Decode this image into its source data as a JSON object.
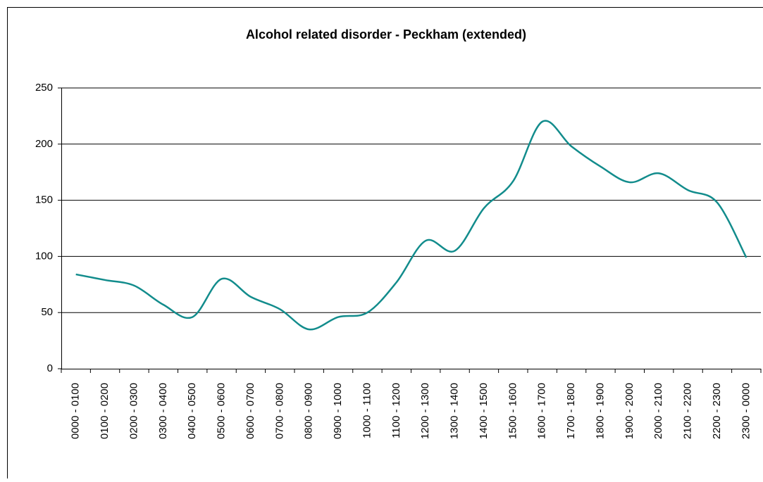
{
  "chart_data": {
    "type": "line",
    "title": "Alcohol related disorder - Peckham (extended)",
    "categories": [
      "0000 - 0100",
      "0100 - 0200",
      "0200 - 0300",
      "0300 - 0400",
      "0400 - 0500",
      "0500 - 0600",
      "0600 - 0700",
      "0700 - 0800",
      "0800 - 0900",
      "0900 - 1000",
      "1000 - 1100",
      "1100 - 1200",
      "1200 - 1300",
      "1300 - 1400",
      "1400 - 1500",
      "1500 - 1600",
      "1600 - 1700",
      "1700 - 1800",
      "1800 - 1900",
      "1900 - 2000",
      "2000 - 2100",
      "2100 - 2200",
      "2200 - 2300",
      "2300 - 0000"
    ],
    "series": [
      {
        "name": "Alcohol related disorder",
        "color": "#128c8c",
        "values": [
          84,
          79,
          74,
          57,
          46,
          80,
          64,
          53,
          35,
          46,
          50,
          77,
          114,
          105,
          143,
          167,
          220,
          198,
          180,
          166,
          174,
          159,
          148,
          99
        ]
      }
    ],
    "ylim": [
      0,
      250
    ],
    "yticks": [
      0,
      50,
      100,
      150,
      200,
      250
    ],
    "grid": true,
    "smooth": true
  }
}
